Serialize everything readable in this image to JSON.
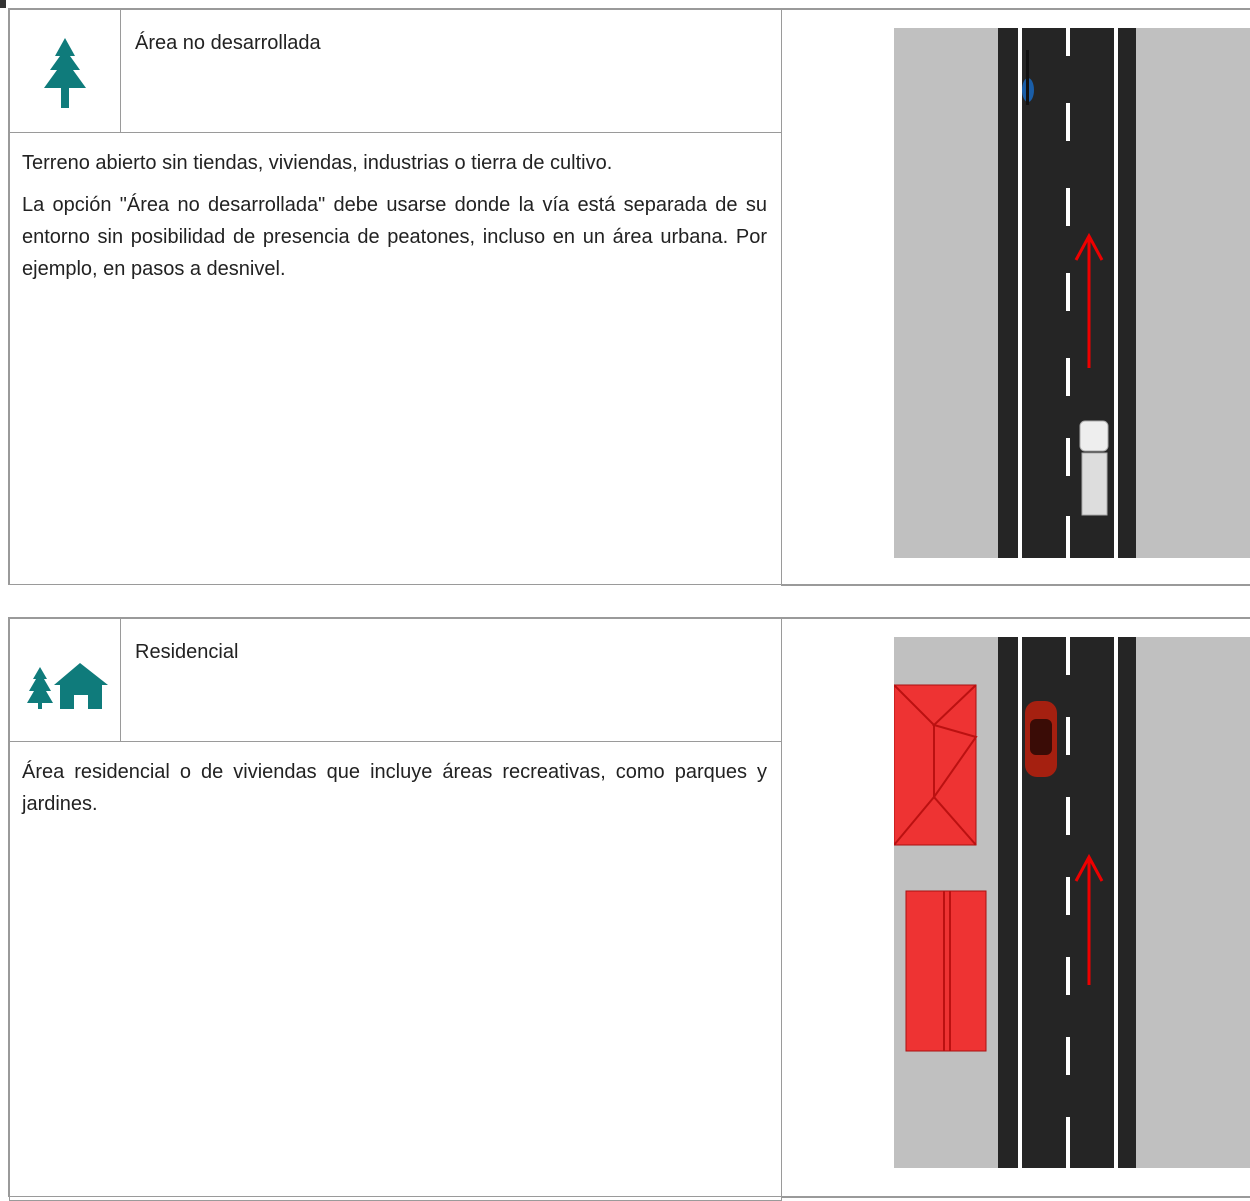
{
  "sections": [
    {
      "title": "Área no desarrollada",
      "paragraphs": [
        "Terreno abierto sin tiendas, viviendas, industrias o tierra de cultivo.",
        "La opción \"Área no desarrollada\" debe usarse donde la vía está separada de su entorno sin posibilidad de presencia de peatones, incluso en un área urbana. Por ejemplo, en pasos a desnivel."
      ]
    },
    {
      "title": "Residencial",
      "paragraphs": [
        "Área residencial o de viviendas que incluye áreas recreativas, como parques y jardines."
      ]
    }
  ]
}
